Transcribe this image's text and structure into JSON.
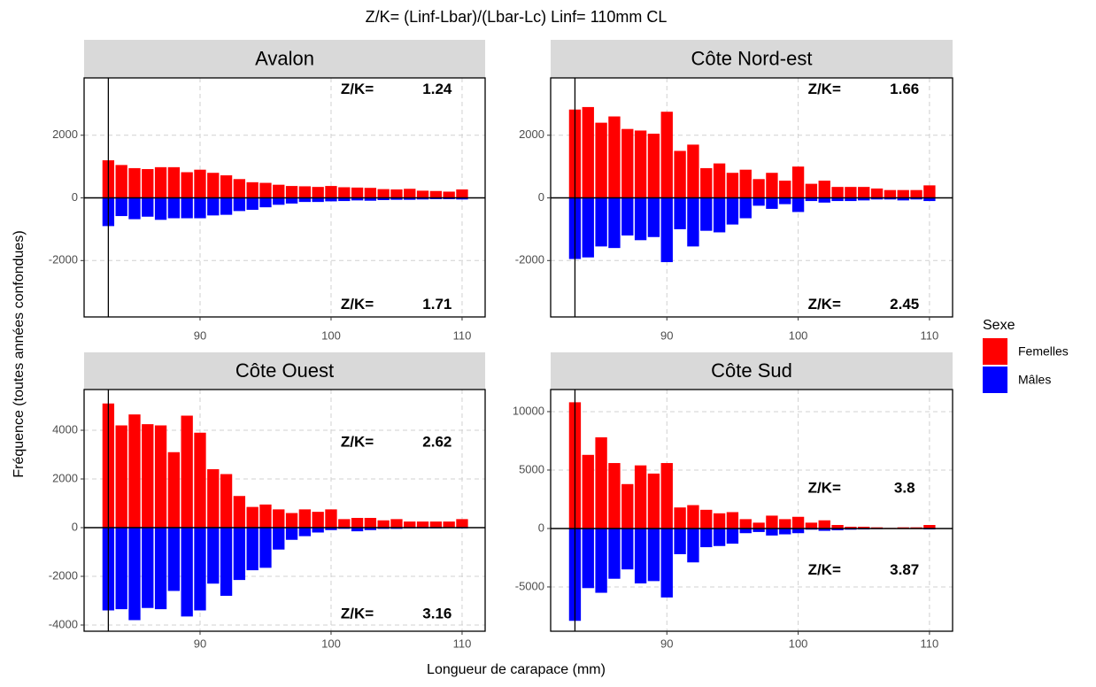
{
  "chart_data": {
    "type": "bar",
    "title": "Z/K= (Linf-Lbar)/(Lbar-Lc)   Linf= 110mm CL",
    "xlabel": "Longueur de carapace (mm)",
    "ylabel": "Fréquence (toutes années confondues)",
    "legend": {
      "title": "Sexe",
      "items": [
        {
          "name": "Femelles",
          "color": "#ff0000"
        },
        {
          "name": "Mâles",
          "color": "#0000ff"
        }
      ]
    },
    "grid": true,
    "x": [
      83,
      84,
      85,
      86,
      87,
      88,
      89,
      90,
      91,
      92,
      93,
      94,
      95,
      96,
      97,
      98,
      99,
      100,
      101,
      102,
      103,
      104,
      105,
      106,
      107,
      108,
      109,
      110
    ],
    "xlim": [
      81.15,
      111.76
    ],
    "xticks": [
      90,
      100,
      110
    ],
    "panels": [
      {
        "title": "Avalon",
        "vline": 83,
        "ylim": [
          -3800,
          3830
        ],
        "yticks": [
          -2000,
          0,
          2000
        ],
        "series": [
          {
            "values": [
              1200,
              1050,
              950,
              920,
              980,
              980,
              820,
              900,
              800,
              720,
              600,
              500,
              480,
              420,
              380,
              370,
              350,
              380,
              340,
              330,
              320,
              280,
              270,
              290,
              230,
              220,
              200,
              270
            ]
          },
          {
            "values": [
              -900,
              -580,
              -680,
              -600,
              -700,
              -650,
              -650,
              -650,
              -560,
              -540,
              -420,
              -380,
              -300,
              -220,
              -180,
              -130,
              -130,
              -110,
              -100,
              -80,
              -90,
              -70,
              -60,
              -60,
              -50,
              -40,
              -40,
              -50
            ]
          }
        ],
        "annotations": [
          {
            "label": "Z/K=",
            "value": 1.24
          },
          {
            "label": "Z/K=",
            "value": 1.71
          }
        ]
      },
      {
        "title": "Côte Nord-est",
        "vline": 83,
        "ylim": [
          -3800,
          3830
        ],
        "yticks": [
          -2000,
          0,
          2000
        ],
        "series": [
          {
            "values": [
              2820,
              2900,
              2400,
              2600,
              2200,
              2150,
              2050,
              2750,
              1500,
              1700,
              950,
              1100,
              800,
              900,
              600,
              800,
              550,
              1000,
              450,
              550,
              350,
              350,
              350,
              300,
              250,
              250,
              250,
              400
            ]
          },
          {
            "values": [
              -1950,
              -1900,
              -1550,
              -1600,
              -1200,
              -1350,
              -1250,
              -2050,
              -1000,
              -1550,
              -1050,
              -1100,
              -850,
              -650,
              -250,
              -350,
              -200,
              -450,
              -100,
              -150,
              -100,
              -100,
              -80,
              -50,
              -50,
              -80,
              -50,
              -100
            ]
          }
        ],
        "annotations": [
          {
            "label": "Z/K=",
            "value": 1.66
          },
          {
            "label": "Z/K=",
            "value": 2.45
          }
        ]
      },
      {
        "title": "Côte Ouest",
        "vline": 83,
        "ylim": [
          -4255,
          5673
        ],
        "yticks": [
          -4000,
          -2000,
          0,
          2000,
          4000
        ],
        "series": [
          {
            "values": [
              5100,
              4200,
              4650,
              4250,
              4200,
              3100,
              4600,
              3900,
              2400,
              2200,
              1300,
              850,
              950,
              750,
              600,
              750,
              650,
              750,
              350,
              400,
              400,
              300,
              350,
              250,
              250,
              250,
              250,
              350
            ]
          },
          {
            "values": [
              -3400,
              -3350,
              -3800,
              -3300,
              -3350,
              -2600,
              -3650,
              -3400,
              -2300,
              -2800,
              -2150,
              -1750,
              -1650,
              -900,
              -500,
              -350,
              -200,
              -100,
              -50,
              -150,
              -100,
              -50,
              -50,
              -30,
              -30,
              -30,
              -20,
              -30
            ]
          }
        ],
        "annotations": [
          {
            "label": "Z/K=",
            "value": 2.62
          },
          {
            "label": "Z/K=",
            "value": 3.16
          }
        ]
      },
      {
        "title": "Côte Sud",
        "vline": 83,
        "ylim": [
          -8790,
          11890
        ],
        "yticks": [
          -5000,
          0,
          5000,
          10000
        ],
        "series": [
          {
            "values": [
              10800,
              6300,
              7800,
              5600,
              3800,
              5400,
              4700,
              5600,
              1800,
              2000,
              1600,
              1300,
              1400,
              800,
              500,
              1100,
              800,
              1000,
              500,
              700,
              300,
              150,
              150,
              100,
              50,
              100,
              100,
              300
            ]
          },
          {
            "values": [
              -7900,
              -5100,
              -5500,
              -4300,
              -3500,
              -4700,
              -4500,
              -5900,
              -2200,
              -2900,
              -1600,
              -1500,
              -1300,
              -400,
              -300,
              -600,
              -500,
              -400,
              -100,
              -200,
              -150,
              -100,
              -80,
              -50,
              -30,
              -30,
              -30,
              -80
            ]
          }
        ],
        "annotations": [
          {
            "label": "Z/K=",
            "value": 3.8
          },
          {
            "label": "Z/K=",
            "value": 3.87
          }
        ]
      }
    ]
  }
}
